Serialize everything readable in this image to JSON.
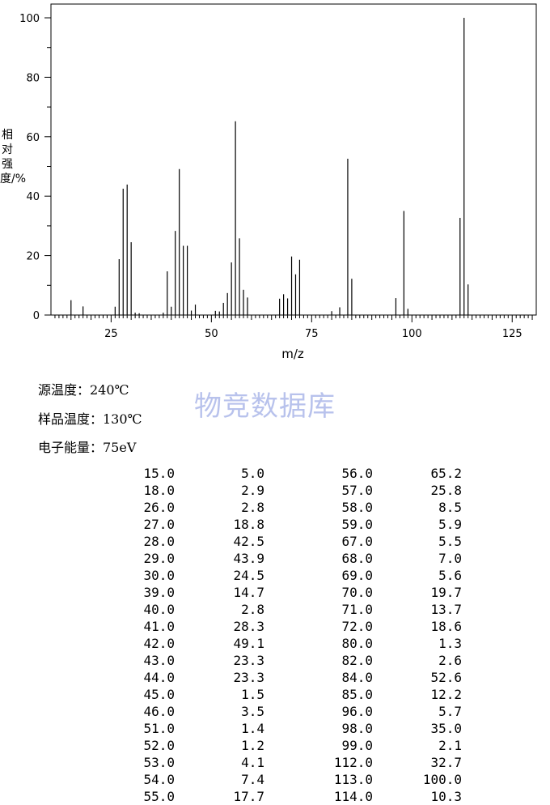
{
  "chart_data": {
    "type": "bar",
    "xlabel": "m/z",
    "ylabel": "相对强度/%",
    "xlim": [
      10,
      131
    ],
    "ylim": [
      0,
      100
    ],
    "xticks": [
      25,
      50,
      75,
      100,
      125
    ],
    "yticks": [
      0,
      20,
      40,
      60,
      80,
      100
    ],
    "grid": false,
    "x": [
      15,
      18,
      26,
      27,
      28,
      29,
      30,
      31,
      32,
      38,
      39,
      40,
      41,
      42,
      43,
      44,
      45,
      46,
      51,
      52,
      53,
      54,
      55,
      56,
      57,
      58,
      59,
      67,
      68,
      69,
      70,
      71,
      72,
      80,
      82,
      84,
      85,
      96,
      98,
      99,
      112,
      113,
      114
    ],
    "values": [
      5.0,
      2.9,
      2.8,
      18.8,
      42.5,
      43.9,
      24.5,
      0.8,
      0.6,
      0.8,
      14.7,
      2.8,
      28.3,
      49.1,
      23.3,
      23.3,
      1.5,
      3.5,
      1.4,
      1.2,
      4.1,
      7.4,
      17.7,
      65.2,
      25.8,
      8.5,
      5.9,
      5.5,
      7.0,
      5.6,
      19.7,
      13.7,
      18.6,
      1.3,
      2.6,
      52.6,
      12.2,
      5.7,
      35.0,
      2.1,
      32.7,
      100.0,
      10.3
    ]
  },
  "conditions": {
    "source_temp": "源温度：240℃",
    "sample_temp": "样品温度：130℃",
    "electron_energy": "电子能量：75eV"
  },
  "watermark": "物竞数据库",
  "peak_table": {
    "left": [
      [
        "15.0",
        "5.0"
      ],
      [
        "18.0",
        "2.9"
      ],
      [
        "26.0",
        "2.8"
      ],
      [
        "27.0",
        "18.8"
      ],
      [
        "28.0",
        "42.5"
      ],
      [
        "29.0",
        "43.9"
      ],
      [
        "30.0",
        "24.5"
      ],
      [
        "39.0",
        "14.7"
      ],
      [
        "40.0",
        "2.8"
      ],
      [
        "41.0",
        "28.3"
      ],
      [
        "42.0",
        "49.1"
      ],
      [
        "43.0",
        "23.3"
      ],
      [
        "44.0",
        "23.3"
      ],
      [
        "45.0",
        "1.5"
      ],
      [
        "46.0",
        "3.5"
      ],
      [
        "51.0",
        "1.4"
      ],
      [
        "52.0",
        "1.2"
      ],
      [
        "53.0",
        "4.1"
      ],
      [
        "54.0",
        "7.4"
      ],
      [
        "55.0",
        "17.7"
      ]
    ],
    "right": [
      [
        "56.0",
        "65.2"
      ],
      [
        "57.0",
        "25.8"
      ],
      [
        "58.0",
        "8.5"
      ],
      [
        "59.0",
        "5.9"
      ],
      [
        "67.0",
        "5.5"
      ],
      [
        "68.0",
        "7.0"
      ],
      [
        "69.0",
        "5.6"
      ],
      [
        "70.0",
        "19.7"
      ],
      [
        "71.0",
        "13.7"
      ],
      [
        "72.0",
        "18.6"
      ],
      [
        "80.0",
        "1.3"
      ],
      [
        "82.0",
        "2.6"
      ],
      [
        "84.0",
        "52.6"
      ],
      [
        "85.0",
        "12.2"
      ],
      [
        "96.0",
        "5.7"
      ],
      [
        "98.0",
        "35.0"
      ],
      [
        "99.0",
        "2.1"
      ],
      [
        "112.0",
        "32.7"
      ],
      [
        "113.0",
        "100.0"
      ],
      [
        "114.0",
        "10.3"
      ]
    ]
  }
}
